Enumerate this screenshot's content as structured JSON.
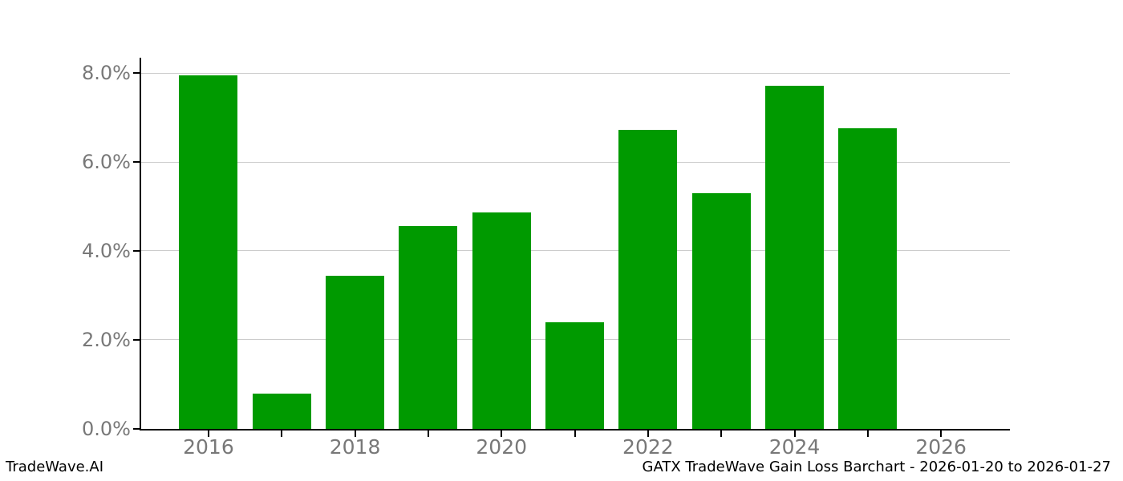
{
  "chart_data": {
    "type": "bar",
    "title": "GATX TradeWave Gain Loss Barchart - 2026-01-20 to 2026-01-27",
    "xlabel": "",
    "ylabel": "",
    "categories": [
      2016,
      2017,
      2018,
      2019,
      2020,
      2021,
      2022,
      2023,
      2024,
      2025,
      2026
    ],
    "values": [
      7.96,
      0.79,
      3.44,
      4.56,
      4.87,
      2.39,
      6.72,
      5.31,
      7.71,
      6.76,
      0
    ],
    "value_unit": "percent",
    "ylim": [
      0,
      8.35
    ],
    "ytick_values": [
      0,
      2,
      4,
      6,
      8
    ],
    "ytick_labels": [
      "0.0%",
      "2.0%",
      "4.0%",
      "6.0%",
      "8.0%"
    ],
    "xtick_years": [
      2016,
      2017,
      2018,
      2019,
      2020,
      2021,
      2022,
      2023,
      2024,
      2025,
      2026
    ],
    "xtick_labeled_years": [
      2016,
      2018,
      2020,
      2022,
      2024,
      2026
    ],
    "grid": true,
    "legend_position": "none",
    "bar_color": "#009a00",
    "gridline_color": "#cccccc",
    "tick_label_color": "#787878"
  },
  "footer": {
    "left": "TradeWave.AI",
    "right": "GATX TradeWave Gain Loss Barchart - 2026-01-20 to 2026-01-27"
  }
}
